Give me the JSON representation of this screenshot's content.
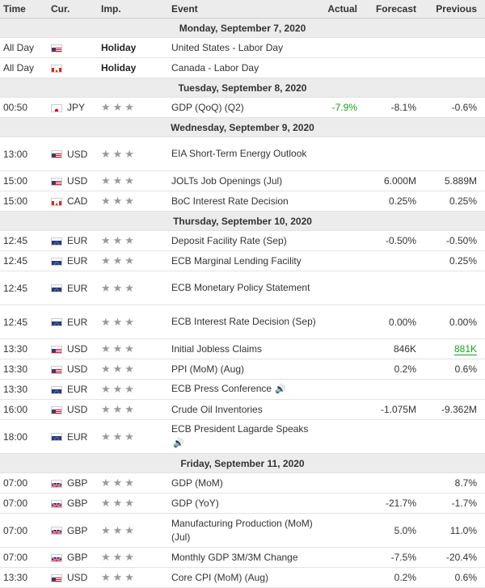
{
  "headers": {
    "time": "Time",
    "cur": "Cur.",
    "imp": "Imp.",
    "event": "Event",
    "actual": "Actual",
    "forecast": "Forecast",
    "previous": "Previous"
  },
  "colors": {
    "positive": "#1e9e1e",
    "header_bg": "#ececec",
    "star": "#9a9a9a"
  },
  "rows": [
    {
      "type": "day",
      "label": "Monday, September 7, 2020"
    },
    {
      "type": "ev",
      "time": "All Day",
      "flag": "us",
      "cur": "",
      "imp": "Holiday",
      "event": "United States - Labor Day",
      "actual": "",
      "forecast": "",
      "previous": ""
    },
    {
      "type": "ev",
      "time": "All Day",
      "flag": "ca",
      "cur": "",
      "imp": "Holiday",
      "event": "Canada - Labor Day",
      "actual": "",
      "forecast": "",
      "previous": ""
    },
    {
      "type": "day",
      "label": "Tuesday, September 8, 2020"
    },
    {
      "type": "ev",
      "time": "00:50",
      "flag": "jp",
      "cur": "JPY",
      "imp": "★★★",
      "event": "GDP (QoQ) (Q2)",
      "actual": "-7.9%",
      "actual_color": "green",
      "forecast": "-8.1%",
      "previous": "-0.6%"
    },
    {
      "type": "day",
      "label": "Wednesday, September 9, 2020"
    },
    {
      "type": "ev",
      "tall": true,
      "time": "13:00",
      "flag": "us",
      "cur": "USD",
      "imp": "★★★",
      "event": "EIA Short-Term Energy Outlook",
      "actual": "",
      "forecast": "",
      "previous": ""
    },
    {
      "type": "ev",
      "time": "15:00",
      "flag": "us",
      "cur": "USD",
      "imp": "★★★",
      "event": "JOLTs Job Openings (Jul)",
      "actual": "",
      "forecast": "6.000M",
      "previous": "5.889M"
    },
    {
      "type": "ev",
      "time": "15:00",
      "flag": "ca",
      "cur": "CAD",
      "imp": "★★★",
      "event": "BoC Interest Rate Decision",
      "actual": "",
      "forecast": "0.25%",
      "previous": "0.25%"
    },
    {
      "type": "day",
      "label": "Thursday, September 10, 2020"
    },
    {
      "type": "ev",
      "time": "12:45",
      "flag": "eu",
      "cur": "EUR",
      "imp": "★★★",
      "event": "Deposit Facility Rate (Sep)",
      "actual": "",
      "forecast": "-0.50%",
      "previous": "-0.50%"
    },
    {
      "type": "ev",
      "time": "12:45",
      "flag": "eu",
      "cur": "EUR",
      "imp": "★★★",
      "event": "ECB Marginal Lending Facility",
      "actual": "",
      "forecast": "",
      "previous": "0.25%"
    },
    {
      "type": "ev",
      "tall": true,
      "time": "12:45",
      "flag": "eu",
      "cur": "EUR",
      "imp": "★★★",
      "event": "ECB Monetary Policy Statement",
      "actual": "",
      "forecast": "",
      "previous": ""
    },
    {
      "type": "ev",
      "tall": true,
      "time": "12:45",
      "flag": "eu",
      "cur": "EUR",
      "imp": "★★★",
      "event": "ECB Interest Rate Decision (Sep)",
      "actual": "",
      "forecast": "0.00%",
      "previous": "0.00%"
    },
    {
      "type": "ev",
      "time": "13:30",
      "flag": "us",
      "cur": "USD",
      "imp": "★★★",
      "event": "Initial Jobless Claims",
      "actual": "",
      "forecast": "846K",
      "previous": "881K",
      "previous_color": "green"
    },
    {
      "type": "ev",
      "time": "13:30",
      "flag": "us",
      "cur": "USD",
      "imp": "★★★",
      "event": "PPI (MoM) (Aug)",
      "actual": "",
      "forecast": "0.2%",
      "previous": "0.6%"
    },
    {
      "type": "ev",
      "time": "13:30",
      "flag": "eu",
      "cur": "EUR",
      "imp": "★★★",
      "event": "ECB Press Conference",
      "speaker": true,
      "actual": "",
      "forecast": "",
      "previous": ""
    },
    {
      "type": "ev",
      "time": "16:00",
      "flag": "us",
      "cur": "USD",
      "imp": "★★★",
      "event": "Crude Oil Inventories",
      "actual": "",
      "forecast": "-1.075M",
      "previous": "-9.362M"
    },
    {
      "type": "ev",
      "tall": true,
      "time": "18:00",
      "flag": "eu",
      "cur": "EUR",
      "imp": "★★★",
      "event": "ECB President Lagarde Speaks",
      "speaker_newline": true,
      "actual": "",
      "forecast": "",
      "previous": ""
    },
    {
      "type": "day",
      "label": "Friday, September 11, 2020"
    },
    {
      "type": "ev",
      "time": "07:00",
      "flag": "gb",
      "cur": "GBP",
      "imp": "★★★",
      "event": "GDP (MoM)",
      "actual": "",
      "forecast": "",
      "previous": "8.7%"
    },
    {
      "type": "ev",
      "time": "07:00",
      "flag": "gb",
      "cur": "GBP",
      "imp": "★★★",
      "event": "GDP (YoY)",
      "actual": "",
      "forecast": "-21.7%",
      "previous": "-1.7%"
    },
    {
      "type": "ev",
      "tall": true,
      "time": "07:00",
      "flag": "gb",
      "cur": "GBP",
      "imp": "★★★",
      "event": "Manufacturing Production (MoM) (Jul)",
      "actual": "",
      "forecast": "5.0%",
      "previous": "11.0%"
    },
    {
      "type": "ev",
      "time": "07:00",
      "flag": "gb",
      "cur": "GBP",
      "imp": "★★★",
      "event": "Monthly GDP 3M/3M Change",
      "actual": "",
      "forecast": "-7.5%",
      "previous": "-20.4%"
    },
    {
      "type": "ev",
      "time": "13:30",
      "flag": "us",
      "cur": "USD",
      "imp": "★★★",
      "event": "Core CPI (MoM) (Aug)",
      "actual": "",
      "forecast": "0.2%",
      "previous": "0.6%"
    }
  ]
}
